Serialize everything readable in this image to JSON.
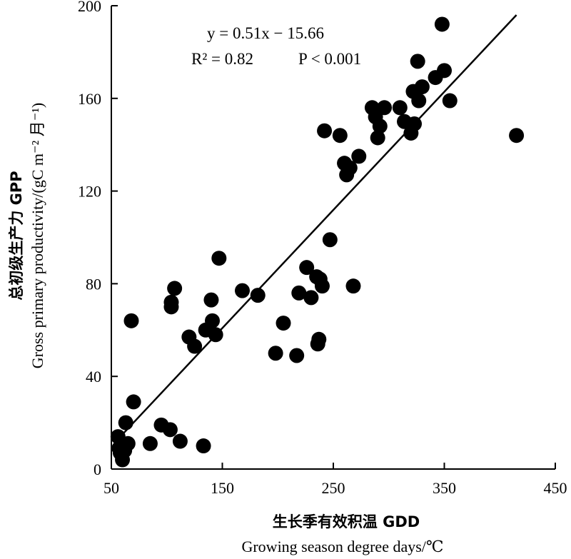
{
  "chart_data": {
    "type": "scatter",
    "title": "",
    "xlabel_cn": "生长季有效积温 GDD",
    "xlabel_en": "Growing season degree days/℃",
    "ylabel_cn": "总初级生产力 GPP",
    "ylabel_en": "Gross primary productivity/(gC m⁻² 月⁻¹)",
    "xlim": [
      50,
      450
    ],
    "ylim": [
      0,
      200
    ],
    "xticks": [
      50,
      150,
      250,
      350,
      450
    ],
    "yticks": [
      0,
      40,
      80,
      120,
      160,
      200
    ],
    "grid": false,
    "legend": "none",
    "fit_line": {
      "slope": 0.51,
      "intercept": -15.66,
      "x_range": [
        58,
        415
      ]
    },
    "annotations": {
      "equation": "y = 0.51x − 15.66",
      "r2": "R² = 0.82",
      "p": "P < 0.001"
    },
    "points": [
      {
        "x": 56,
        "y": 14
      },
      {
        "x": 57,
        "y": 9
      },
      {
        "x": 58,
        "y": 7
      },
      {
        "x": 60,
        "y": 4
      },
      {
        "x": 62,
        "y": 8
      },
      {
        "x": 63,
        "y": 20
      },
      {
        "x": 65,
        "y": 11
      },
      {
        "x": 68,
        "y": 64
      },
      {
        "x": 70,
        "y": 29
      },
      {
        "x": 85,
        "y": 11
      },
      {
        "x": 95,
        "y": 19
      },
      {
        "x": 103,
        "y": 17
      },
      {
        "x": 104,
        "y": 72
      },
      {
        "x": 104,
        "y": 70
      },
      {
        "x": 107,
        "y": 78
      },
      {
        "x": 112,
        "y": 12
      },
      {
        "x": 120,
        "y": 57
      },
      {
        "x": 125,
        "y": 53
      },
      {
        "x": 133,
        "y": 10
      },
      {
        "x": 135,
        "y": 60
      },
      {
        "x": 140,
        "y": 73
      },
      {
        "x": 141,
        "y": 64
      },
      {
        "x": 144,
        "y": 58
      },
      {
        "x": 147,
        "y": 91
      },
      {
        "x": 168,
        "y": 77
      },
      {
        "x": 182,
        "y": 75
      },
      {
        "x": 198,
        "y": 50
      },
      {
        "x": 205,
        "y": 63
      },
      {
        "x": 217,
        "y": 49
      },
      {
        "x": 219,
        "y": 76
      },
      {
        "x": 226,
        "y": 87
      },
      {
        "x": 230,
        "y": 74
      },
      {
        "x": 235,
        "y": 83
      },
      {
        "x": 236,
        "y": 54
      },
      {
        "x": 237,
        "y": 56
      },
      {
        "x": 238,
        "y": 82
      },
      {
        "x": 240,
        "y": 79
      },
      {
        "x": 242,
        "y": 146
      },
      {
        "x": 247,
        "y": 99
      },
      {
        "x": 256,
        "y": 144
      },
      {
        "x": 260,
        "y": 132
      },
      {
        "x": 262,
        "y": 127
      },
      {
        "x": 265,
        "y": 130
      },
      {
        "x": 268,
        "y": 79
      },
      {
        "x": 273,
        "y": 135
      },
      {
        "x": 285,
        "y": 156
      },
      {
        "x": 288,
        "y": 152
      },
      {
        "x": 290,
        "y": 143
      },
      {
        "x": 292,
        "y": 148
      },
      {
        "x": 296,
        "y": 156
      },
      {
        "x": 310,
        "y": 156
      },
      {
        "x": 314,
        "y": 150
      },
      {
        "x": 320,
        "y": 145
      },
      {
        "x": 322,
        "y": 163
      },
      {
        "x": 323,
        "y": 149
      },
      {
        "x": 326,
        "y": 176
      },
      {
        "x": 327,
        "y": 159
      },
      {
        "x": 330,
        "y": 165
      },
      {
        "x": 342,
        "y": 169
      },
      {
        "x": 348,
        "y": 192
      },
      {
        "x": 350,
        "y": 172
      },
      {
        "x": 355,
        "y": 159
      },
      {
        "x": 415,
        "y": 144
      }
    ]
  }
}
